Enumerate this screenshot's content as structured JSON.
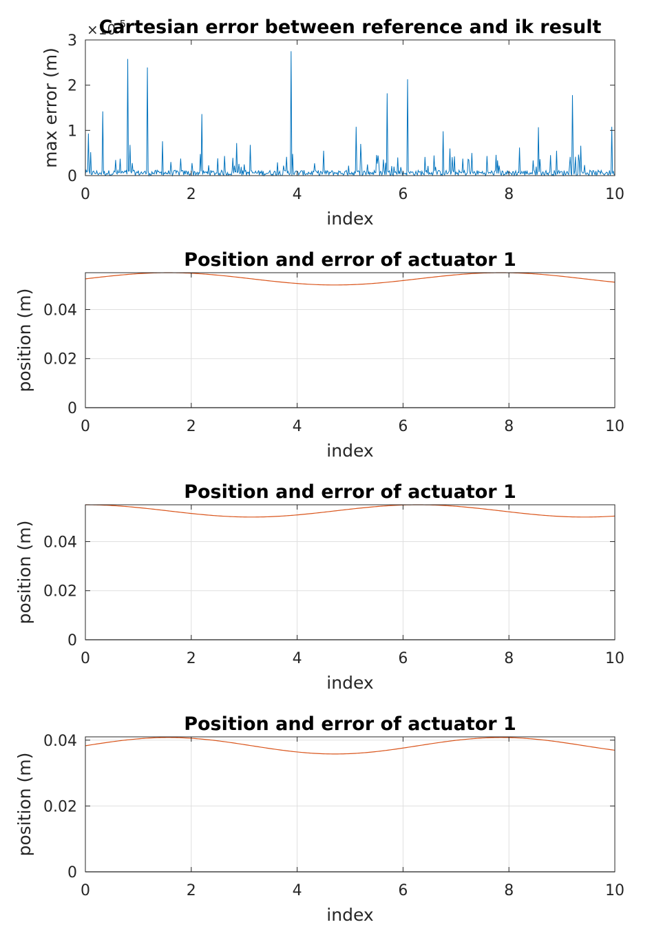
{
  "chart_data": [
    {
      "type": "line",
      "title": "Cartesian error between reference and ik result",
      "xlabel": "index",
      "ylabel": "max error (m)",
      "xlim": [
        0,
        10
      ],
      "ylim": [
        0,
        3
      ],
      "xticks": [
        "0",
        "2",
        "4",
        "6",
        "8",
        "10"
      ],
      "yticks": [
        "0",
        "1",
        "2",
        "3"
      ],
      "yexponent_base": "×10",
      "yexponent_power": "-5",
      "grid": false,
      "series": [
        {
          "color": "#0072BD",
          "noise_level": 0.12,
          "spikes": [
            {
              "x": 0.05,
              "y": 0.93
            },
            {
              "x": 0.1,
              "y": 0.52
            },
            {
              "x": 0.33,
              "y": 1.42
            },
            {
              "x": 0.8,
              "y": 2.58
            },
            {
              "x": 0.85,
              "y": 0.68
            },
            {
              "x": 1.17,
              "y": 2.39
            },
            {
              "x": 1.45,
              "y": 0.76
            },
            {
              "x": 2.2,
              "y": 1.36
            },
            {
              "x": 2.85,
              "y": 0.72
            },
            {
              "x": 3.12,
              "y": 0.68
            },
            {
              "x": 3.88,
              "y": 2.75
            },
            {
              "x": 3.92,
              "y": 0.48
            },
            {
              "x": 4.5,
              "y": 0.55
            },
            {
              "x": 5.12,
              "y": 1.08
            },
            {
              "x": 5.2,
              "y": 0.7
            },
            {
              "x": 5.7,
              "y": 1.82
            },
            {
              "x": 6.08,
              "y": 2.13
            },
            {
              "x": 6.75,
              "y": 0.98
            },
            {
              "x": 6.88,
              "y": 0.6
            },
            {
              "x": 7.3,
              "y": 0.5
            },
            {
              "x": 8.2,
              "y": 0.62
            },
            {
              "x": 8.55,
              "y": 1.07
            },
            {
              "x": 8.9,
              "y": 0.55
            },
            {
              "x": 9.2,
              "y": 1.78
            },
            {
              "x": 9.35,
              "y": 0.66
            },
            {
              "x": 9.95,
              "y": 1.08
            }
          ]
        }
      ]
    },
    {
      "type": "line",
      "title": "Position and error of actuator 1",
      "xlabel": "index",
      "ylabel": "position (m)",
      "xlim": [
        0,
        10
      ],
      "ylim": [
        0,
        0.055
      ],
      "xticks": [
        "0",
        "2",
        "4",
        "6",
        "8",
        "10"
      ],
      "yticks": [
        "0",
        "0.02",
        "0.04"
      ],
      "ytick_values": [
        0,
        0.02,
        0.04
      ],
      "grid": true,
      "series": [
        {
          "color": "#D95319",
          "model": "sine",
          "mean": 0.0525,
          "amplitude": 0.0025,
          "period": 6.283,
          "phase": 0
        },
        {
          "color": "#000000",
          "model": "constant",
          "value": 0
        }
      ]
    },
    {
      "type": "line",
      "title": "Position and error of actuator 1",
      "xlabel": "index",
      "ylabel": "position (m)",
      "xlim": [
        0,
        10
      ],
      "ylim": [
        0,
        0.055
      ],
      "xticks": [
        "0",
        "2",
        "4",
        "6",
        "8",
        "10"
      ],
      "yticks": [
        "0",
        "0.02",
        "0.04"
      ],
      "ytick_values": [
        0,
        0.02,
        0.04
      ],
      "grid": true,
      "series": [
        {
          "color": "#D95319",
          "model": "sine",
          "mean": 0.0525,
          "amplitude": 0.0025,
          "period": 6.283,
          "phase": 1.5708
        },
        {
          "color": "#000000",
          "model": "constant",
          "value": 0
        }
      ]
    },
    {
      "type": "line",
      "title": "Position and error of actuator 1",
      "xlabel": "index",
      "ylabel": "position (m)",
      "xlim": [
        0,
        10
      ],
      "ylim": [
        0,
        0.041
      ],
      "xticks": [
        "0",
        "2",
        "4",
        "6",
        "8",
        "10"
      ],
      "yticks": [
        "0",
        "0.02",
        "0.04"
      ],
      "ytick_values": [
        0,
        0.02,
        0.04
      ],
      "grid": true,
      "series": [
        {
          "color": "#D95319",
          "model": "sine",
          "mean": 0.0383,
          "amplitude": 0.0025,
          "period": 6.283,
          "phase": 0
        },
        {
          "color": "#000000",
          "model": "constant",
          "value": 0
        }
      ]
    }
  ]
}
